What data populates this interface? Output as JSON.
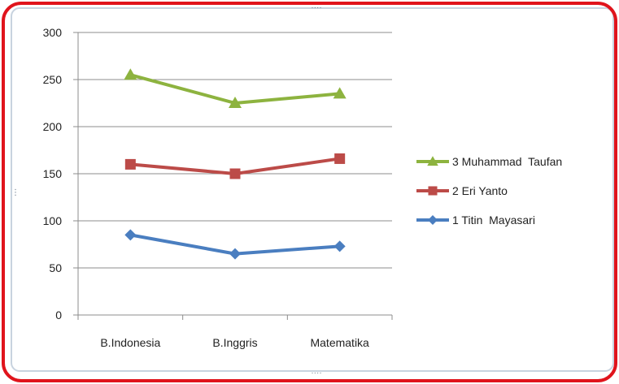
{
  "chart_data": {
    "type": "line",
    "categories": [
      "B.Indonesia",
      "B.Inggris",
      "Matematika"
    ],
    "ylim": [
      0,
      300
    ],
    "yticks": [
      0,
      50,
      100,
      150,
      200,
      250,
      300
    ],
    "grid": true,
    "legend_placement": "right",
    "series": [
      {
        "name": "3 Muhammad  Taufan",
        "values": [
          255,
          225,
          235
        ],
        "color": "#8db33f",
        "marker": "triangle"
      },
      {
        "name": "2 Eri Yanto",
        "values": [
          160,
          150,
          166
        ],
        "color": "#bc4b48",
        "marker": "square"
      },
      {
        "name": "1 Titin  Mayasari",
        "values": [
          85,
          65,
          73
        ],
        "color": "#4a7ec0",
        "marker": "diamond"
      }
    ]
  },
  "frame": {
    "border_color": "#e0141c",
    "handle_glyph": "····"
  }
}
